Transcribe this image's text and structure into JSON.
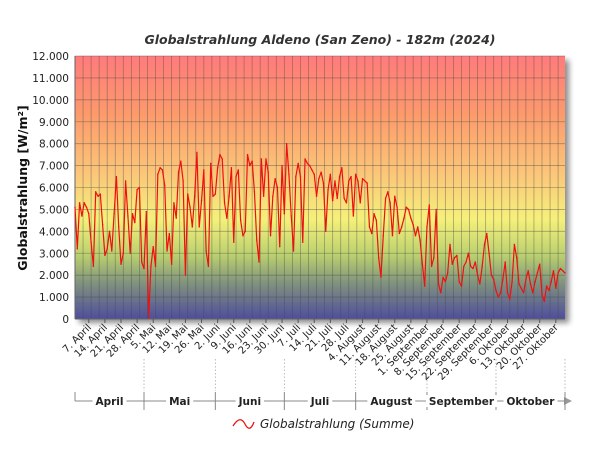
{
  "chart_data": {
    "type": "line",
    "title": "Globalstrahlung Aldeno (San Zeno) - 182m (2024)",
    "ylabel": "Globalstrahlung [W/m²]",
    "xlabel": "",
    "ylim": [
      0,
      12000
    ],
    "yticks": [
      0,
      1000,
      2000,
      3000,
      4000,
      5000,
      6000,
      7000,
      8000,
      9000,
      10000,
      11000,
      12000
    ],
    "ytick_labels": [
      "0",
      "1.000",
      "2.000",
      "3.000",
      "4.000",
      "5.000",
      "6.000",
      "7.000",
      "8.000",
      "9.000",
      "10.000",
      "11.000",
      "12.000"
    ],
    "grid": true,
    "background": "vertical gradient red (top) - orange - yellow - green - blue (bottom)",
    "x_start": "2024-04-01",
    "x_end": "2024-10-31",
    "xtick_dates": [
      "2024-04-07",
      "2024-04-14",
      "2024-04-21",
      "2024-04-28",
      "2024-05-05",
      "2024-05-12",
      "2024-05-19",
      "2024-05-26",
      "2024-06-02",
      "2024-06-09",
      "2024-06-16",
      "2024-06-23",
      "2024-06-30",
      "2024-07-07",
      "2024-07-14",
      "2024-07-21",
      "2024-07-28",
      "2024-08-04",
      "2024-08-11",
      "2024-08-18",
      "2024-08-25",
      "2024-09-01",
      "2024-09-08",
      "2024-09-15",
      "2024-09-22",
      "2024-09-29",
      "2024-10-06",
      "2024-10-13",
      "2024-10-20",
      "2024-10-27"
    ],
    "xtick_labels": [
      "7. April",
      "14. April",
      "21. April",
      "28. April",
      "5. Mai",
      "12. Mai",
      "19. Mai",
      "26. Mai",
      "2. Juni",
      "9. Juni",
      "16. Juni",
      "23. Juni",
      "30. Juni",
      "7. Juli",
      "14. Juli",
      "21. Juli",
      "28. Juli",
      "4. August",
      "11. August",
      "18. August",
      "25. August",
      "1. September",
      "8. September",
      "15. September",
      "22. September",
      "29. September",
      "6. Oktober",
      "13. Oktober",
      "20. Oktober",
      "27. Oktober"
    ],
    "months": [
      "April",
      "Mai",
      "Juni",
      "Juli",
      "August",
      "September",
      "Oktober"
    ],
    "legend": "bottom-center",
    "series": [
      {
        "name": "Globalstrahlung (Summe)",
        "color": "#ee1111",
        "points": [
          [
            "2024-04-01",
            5100
          ],
          [
            "2024-04-02",
            3200
          ],
          [
            "2024-04-03",
            5300
          ],
          [
            "2024-04-04",
            4700
          ],
          [
            "2024-04-05",
            5300
          ],
          [
            "2024-04-06",
            5100
          ],
          [
            "2024-04-07",
            4800
          ],
          [
            "2024-04-08",
            3500
          ],
          [
            "2024-04-09",
            2400
          ],
          [
            "2024-04-10",
            5800
          ],
          [
            "2024-04-11",
            5600
          ],
          [
            "2024-04-12",
            5700
          ],
          [
            "2024-04-13",
            4300
          ],
          [
            "2024-04-14",
            2900
          ],
          [
            "2024-04-15",
            3200
          ],
          [
            "2024-04-16",
            4000
          ],
          [
            "2024-04-17",
            3100
          ],
          [
            "2024-04-18",
            4800
          ],
          [
            "2024-04-19",
            6500
          ],
          [
            "2024-04-20",
            4200
          ],
          [
            "2024-04-21",
            2500
          ],
          [
            "2024-04-22",
            3000
          ],
          [
            "2024-04-23",
            6300
          ],
          [
            "2024-04-24",
            4700
          ],
          [
            "2024-04-25",
            3000
          ],
          [
            "2024-04-26",
            4800
          ],
          [
            "2024-04-27",
            4400
          ],
          [
            "2024-04-28",
            5900
          ],
          [
            "2024-04-29",
            6000
          ],
          [
            "2024-04-30",
            2600
          ],
          [
            "2024-05-01",
            2300
          ],
          [
            "2024-05-02",
            4900
          ],
          [
            "2024-05-03",
            50
          ],
          [
            "2024-05-04",
            2400
          ],
          [
            "2024-05-05",
            3300
          ],
          [
            "2024-05-06",
            2400
          ],
          [
            "2024-05-07",
            6600
          ],
          [
            "2024-05-08",
            6900
          ],
          [
            "2024-05-09",
            6800
          ],
          [
            "2024-05-10",
            6100
          ],
          [
            "2024-05-11",
            3100
          ],
          [
            "2024-05-12",
            3900
          ],
          [
            "2024-05-13",
            2500
          ],
          [
            "2024-05-14",
            5300
          ],
          [
            "2024-05-15",
            4600
          ],
          [
            "2024-05-16",
            6700
          ],
          [
            "2024-05-17",
            7200
          ],
          [
            "2024-05-18",
            6300
          ],
          [
            "2024-05-19",
            2000
          ],
          [
            "2024-05-20",
            5700
          ],
          [
            "2024-05-21",
            5100
          ],
          [
            "2024-05-22",
            4200
          ],
          [
            "2024-05-23",
            5600
          ],
          [
            "2024-05-24",
            7600
          ],
          [
            "2024-05-25",
            4200
          ],
          [
            "2024-05-26",
            5400
          ],
          [
            "2024-05-27",
            6800
          ],
          [
            "2024-05-28",
            3100
          ],
          [
            "2024-05-29",
            2400
          ],
          [
            "2024-05-30",
            7100
          ],
          [
            "2024-05-31",
            5600
          ],
          [
            "2024-06-01",
            5700
          ],
          [
            "2024-06-02",
            6900
          ],
          [
            "2024-06-03",
            7500
          ],
          [
            "2024-06-04",
            7300
          ],
          [
            "2024-06-05",
            5300
          ],
          [
            "2024-06-06",
            4600
          ],
          [
            "2024-06-07",
            5600
          ],
          [
            "2024-06-08",
            6900
          ],
          [
            "2024-06-09",
            3500
          ],
          [
            "2024-06-10",
            6500
          ],
          [
            "2024-06-11",
            6800
          ],
          [
            "2024-06-12",
            4500
          ],
          [
            "2024-06-13",
            3800
          ],
          [
            "2024-06-14",
            4000
          ],
          [
            "2024-06-15",
            7500
          ],
          [
            "2024-06-16",
            7000
          ],
          [
            "2024-06-17",
            7200
          ],
          [
            "2024-06-18",
            5800
          ],
          [
            "2024-06-19",
            3600
          ],
          [
            "2024-06-20",
            2600
          ],
          [
            "2024-06-21",
            7300
          ],
          [
            "2024-06-22",
            5600
          ],
          [
            "2024-06-23",
            7300
          ],
          [
            "2024-06-24",
            6700
          ],
          [
            "2024-06-25",
            3800
          ],
          [
            "2024-06-26",
            5600
          ],
          [
            "2024-06-27",
            6400
          ],
          [
            "2024-06-28",
            6000
          ],
          [
            "2024-06-29",
            3300
          ],
          [
            "2024-06-30",
            7000
          ],
          [
            "2024-07-01",
            4800
          ],
          [
            "2024-07-02",
            8000
          ],
          [
            "2024-07-03",
            6600
          ],
          [
            "2024-07-04",
            4700
          ],
          [
            "2024-07-05",
            3100
          ],
          [
            "2024-07-06",
            6500
          ],
          [
            "2024-07-07",
            7100
          ],
          [
            "2024-07-08",
            6500
          ],
          [
            "2024-07-09",
            3500
          ],
          [
            "2024-07-10",
            7300
          ],
          [
            "2024-07-11",
            7100
          ],
          [
            "2024-07-12",
            7000
          ],
          [
            "2024-07-13",
            6800
          ],
          [
            "2024-07-14",
            6600
          ],
          [
            "2024-07-15",
            5600
          ],
          [
            "2024-07-16",
            6400
          ],
          [
            "2024-07-17",
            6700
          ],
          [
            "2024-07-18",
            6200
          ],
          [
            "2024-07-19",
            4000
          ],
          [
            "2024-07-20",
            5900
          ],
          [
            "2024-07-21",
            6600
          ],
          [
            "2024-07-22",
            5400
          ],
          [
            "2024-07-23",
            6300
          ],
          [
            "2024-07-24",
            5500
          ],
          [
            "2024-07-25",
            6500
          ],
          [
            "2024-07-26",
            6900
          ],
          [
            "2024-07-27",
            5500
          ],
          [
            "2024-07-28",
            5300
          ],
          [
            "2024-07-29",
            6300
          ],
          [
            "2024-07-30",
            6500
          ],
          [
            "2024-07-31",
            4700
          ],
          [
            "2024-08-01",
            6600
          ],
          [
            "2024-08-02",
            6300
          ],
          [
            "2024-08-03",
            5300
          ],
          [
            "2024-08-04",
            6400
          ],
          [
            "2024-08-05",
            6300
          ],
          [
            "2024-08-06",
            6200
          ],
          [
            "2024-08-07",
            4200
          ],
          [
            "2024-08-08",
            3900
          ],
          [
            "2024-08-09",
            4800
          ],
          [
            "2024-08-10",
            4500
          ],
          [
            "2024-08-11",
            2800
          ],
          [
            "2024-08-12",
            1900
          ],
          [
            "2024-08-13",
            3800
          ],
          [
            "2024-08-14",
            5500
          ],
          [
            "2024-08-15",
            5800
          ],
          [
            "2024-08-16",
            5300
          ],
          [
            "2024-08-17",
            3800
          ],
          [
            "2024-08-18",
            5600
          ],
          [
            "2024-08-19",
            5100
          ],
          [
            "2024-08-20",
            3900
          ],
          [
            "2024-08-21",
            4200
          ],
          [
            "2024-08-22",
            4600
          ],
          [
            "2024-08-23",
            5100
          ],
          [
            "2024-08-24",
            5000
          ],
          [
            "2024-08-25",
            4600
          ],
          [
            "2024-08-26",
            4300
          ],
          [
            "2024-08-27",
            3800
          ],
          [
            "2024-08-28",
            4200
          ],
          [
            "2024-08-29",
            3600
          ],
          [
            "2024-08-30",
            2500
          ],
          [
            "2024-08-31",
            1500
          ],
          [
            "2024-09-01",
            4200
          ],
          [
            "2024-09-02",
            5200
          ],
          [
            "2024-09-03",
            2400
          ],
          [
            "2024-09-04",
            2800
          ],
          [
            "2024-09-05",
            5000
          ],
          [
            "2024-09-06",
            1600
          ],
          [
            "2024-09-07",
            1200
          ],
          [
            "2024-09-08",
            1900
          ],
          [
            "2024-09-09",
            1700
          ],
          [
            "2024-09-10",
            2100
          ],
          [
            "2024-09-11",
            3400
          ],
          [
            "2024-09-12",
            2500
          ],
          [
            "2024-09-13",
            2800
          ],
          [
            "2024-09-14",
            2900
          ],
          [
            "2024-09-15",
            1700
          ],
          [
            "2024-09-16",
            1500
          ],
          [
            "2024-09-17",
            2400
          ],
          [
            "2024-09-18",
            2600
          ],
          [
            "2024-09-19",
            3000
          ],
          [
            "2024-09-20",
            2400
          ],
          [
            "2024-09-21",
            2300
          ],
          [
            "2024-09-22",
            2600
          ],
          [
            "2024-09-23",
            2000
          ],
          [
            "2024-09-24",
            1600
          ],
          [
            "2024-09-25",
            2400
          ],
          [
            "2024-09-26",
            3400
          ],
          [
            "2024-09-27",
            3900
          ],
          [
            "2024-09-28",
            3000
          ],
          [
            "2024-09-29",
            2000
          ],
          [
            "2024-09-30",
            1800
          ],
          [
            "2024-10-01",
            1300
          ],
          [
            "2024-10-02",
            1000
          ],
          [
            "2024-10-03",
            1200
          ],
          [
            "2024-10-04",
            1800
          ],
          [
            "2024-10-05",
            2600
          ],
          [
            "2024-10-06",
            1200
          ],
          [
            "2024-10-07",
            900
          ],
          [
            "2024-10-08",
            1700
          ],
          [
            "2024-10-09",
            3400
          ],
          [
            "2024-10-10",
            2800
          ],
          [
            "2024-10-11",
            1600
          ],
          [
            "2024-10-12",
            1400
          ],
          [
            "2024-10-13",
            1200
          ],
          [
            "2024-10-14",
            1800
          ],
          [
            "2024-10-15",
            2200
          ],
          [
            "2024-10-16",
            1600
          ],
          [
            "2024-10-17",
            1200
          ],
          [
            "2024-10-18",
            1700
          ],
          [
            "2024-10-19",
            2100
          ],
          [
            "2024-10-20",
            2500
          ],
          [
            "2024-10-21",
            1100
          ],
          [
            "2024-10-22",
            800
          ],
          [
            "2024-10-23",
            1500
          ],
          [
            "2024-10-24",
            1300
          ],
          [
            "2024-10-25",
            1700
          ],
          [
            "2024-10-26",
            2200
          ],
          [
            "2024-10-27",
            1400
          ],
          [
            "2024-10-28",
            2100
          ],
          [
            "2024-10-29",
            2300
          ],
          [
            "2024-10-30",
            2200
          ],
          [
            "2024-10-31",
            2100
          ]
        ]
      }
    ]
  }
}
